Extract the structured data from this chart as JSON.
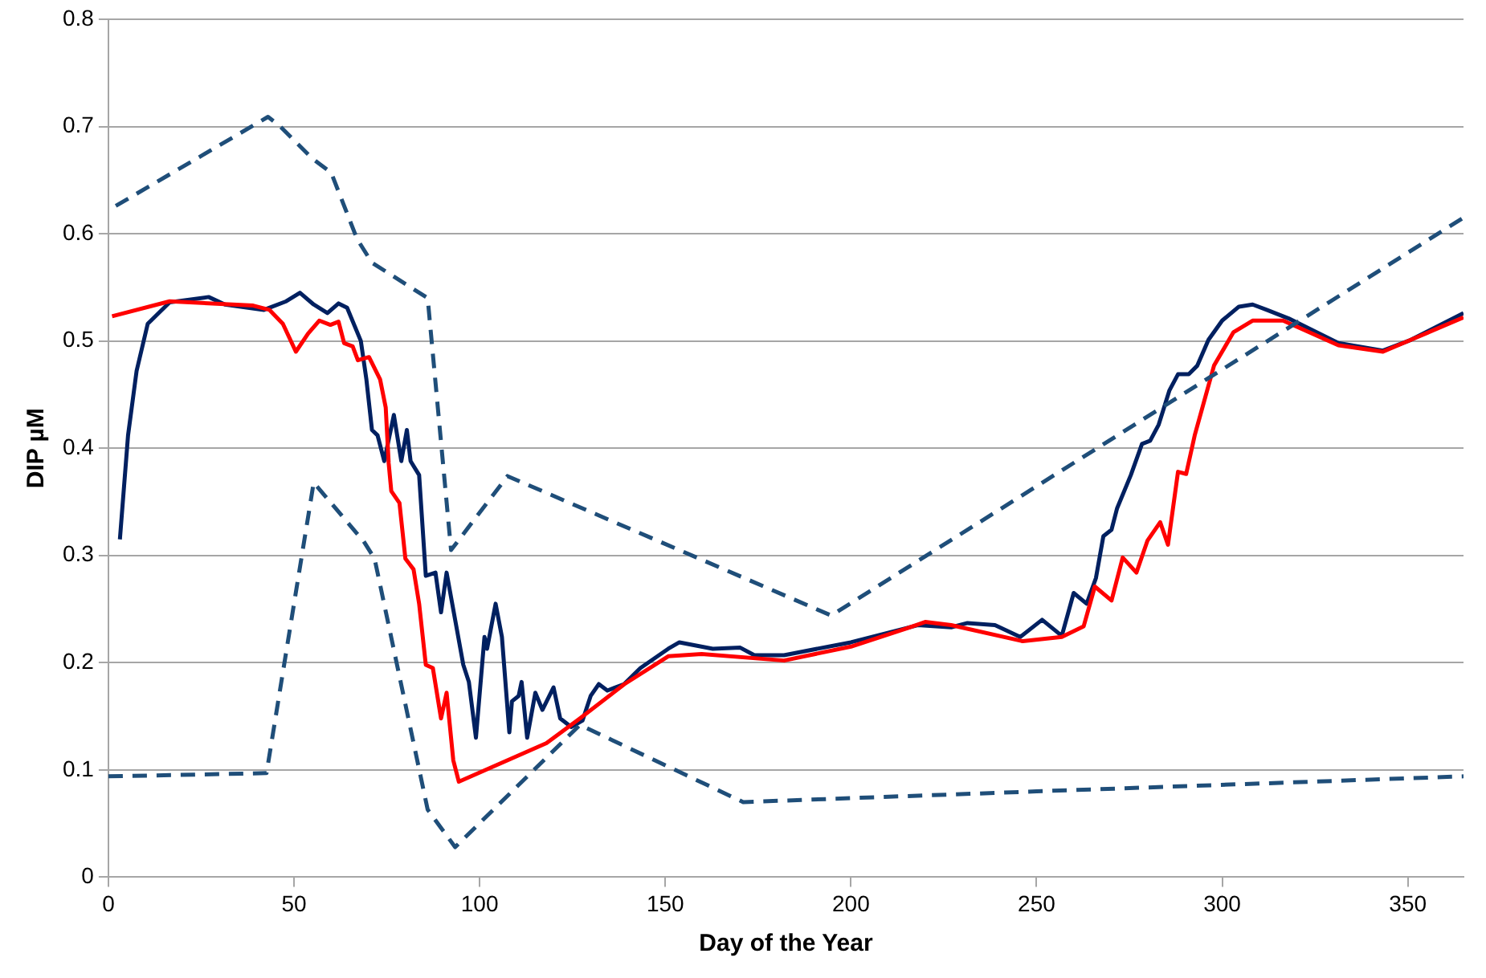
{
  "chart_data": {
    "type": "line",
    "xlabel": "Day of the Year",
    "ylabel": "DIP µM",
    "xlim": [
      0,
      365
    ],
    "ylim": [
      0,
      0.8
    ],
    "xticks": [
      0,
      50,
      100,
      150,
      200,
      250,
      300,
      350
    ],
    "yticks": [
      0,
      0.1,
      0.2,
      0.3,
      0.4,
      0.5,
      0.6,
      0.7,
      0.8
    ],
    "grid": "y",
    "legend": false,
    "marker": "none",
    "series": [
      {
        "color": "#1f4e79",
        "line_style": "dashed",
        "x": [
          2,
          43,
          46,
          55,
          60,
          67,
          71,
          86,
          92.3,
          107.5,
          194.7,
          365
        ],
        "values": [
          0.626,
          0.709,
          0.701,
          0.67,
          0.657,
          0.595,
          0.573,
          0.54,
          0.305,
          0.374,
          0.244,
          0.615
        ]
      },
      {
        "color": "#1f4e79",
        "line_style": "dashed",
        "x": [
          0,
          42.6,
          55.3,
          68.8,
          71.7,
          86,
          93.4,
          127,
          171,
          250,
          365
        ],
        "values": [
          0.094,
          0.097,
          0.368,
          0.313,
          0.297,
          0.063,
          0.028,
          0.142,
          0.07,
          0.08,
          0.094
        ]
      },
      {
        "color": "#ff0000",
        "line_style": "solid",
        "x": [
          1,
          16.5,
          39,
          43.4,
          47,
          50.5,
          53.8,
          56.8,
          59.8,
          62,
          63.5,
          65.8,
          67.2,
          70.2,
          73.2,
          74.7,
          75.5,
          76.2,
          78.4,
          80,
          82.2,
          83.7,
          85.5,
          87.4,
          89.6,
          91.1,
          92.9,
          94.4,
          118,
          127,
          139,
          150.8,
          159.8,
          182,
          200,
          215,
          220,
          227,
          246.3,
          256.8,
          262.7,
          265.7,
          270.2,
          273.2,
          276.9,
          279.9,
          283.3,
          285.4,
          288.1,
          290.3,
          292.6,
          297.8,
          303,
          308.2,
          316.4,
          331.3,
          343.3,
          350.8,
          365
        ],
        "values": [
          0.523,
          0.537,
          0.533,
          0.529,
          0.516,
          0.49,
          0.507,
          0.519,
          0.515,
          0.518,
          0.498,
          0.495,
          0.482,
          0.485,
          0.464,
          0.438,
          0.386,
          0.36,
          0.349,
          0.297,
          0.287,
          0.255,
          0.198,
          0.195,
          0.148,
          0.172,
          0.109,
          0.089,
          0.125,
          0.148,
          0.18,
          0.206,
          0.208,
          0.202,
          0.215,
          0.232,
          0.238,
          0.235,
          0.22,
          0.224,
          0.234,
          0.271,
          0.258,
          0.298,
          0.284,
          0.314,
          0.331,
          0.31,
          0.378,
          0.376,
          0.412,
          0.477,
          0.508,
          0.519,
          0.519,
          0.496,
          0.49,
          0.501,
          0.522
        ]
      },
      {
        "color": "#002060",
        "line_style": "solid",
        "x": [
          3.1,
          5.3,
          7.6,
          10.6,
          16.5,
          27,
          31.4,
          41.9,
          47.9,
          51.6,
          55.3,
          59,
          62,
          64.3,
          68,
          69.5,
          71,
          72.5,
          74.3,
          76.9,
          78.9,
          80.4,
          81.4,
          83.7,
          85.5,
          88.1,
          89.6,
          91.1,
          93.4,
          95.6,
          97.1,
          99,
          101.3,
          102,
          104.3,
          106,
          108,
          108.7,
          110.5,
          111.3,
          112.8,
          115,
          116.9,
          119.9,
          121.7,
          124.7,
          127.7,
          129.9,
          132.1,
          134.4,
          138.9,
          143.3,
          150.8,
          153.8,
          162.8,
          170.2,
          174,
          182,
          200,
          218,
          227,
          231.4,
          238.8,
          245.6,
          251.5,
          256.8,
          260,
          263.5,
          266,
          268,
          270.2,
          271.7,
          275.4,
          278.4,
          280.6,
          282.9,
          285.8,
          288.1,
          291,
          293.3,
          296.3,
          300,
          304.5,
          308.2,
          312,
          317.9,
          331.3,
          343.3,
          350.8,
          365
        ],
        "values": [
          0.315,
          0.412,
          0.472,
          0.516,
          0.536,
          0.541,
          0.534,
          0.529,
          0.537,
          0.545,
          0.534,
          0.526,
          0.535,
          0.531,
          0.5,
          0.464,
          0.417,
          0.412,
          0.388,
          0.431,
          0.388,
          0.417,
          0.388,
          0.375,
          0.281,
          0.284,
          0.247,
          0.284,
          0.24,
          0.198,
          0.182,
          0.13,
          0.224,
          0.213,
          0.255,
          0.224,
          0.135,
          0.164,
          0.169,
          0.182,
          0.13,
          0.172,
          0.156,
          0.177,
          0.148,
          0.14,
          0.146,
          0.169,
          0.18,
          0.174,
          0.18,
          0.195,
          0.213,
          0.219,
          0.213,
          0.214,
          0.207,
          0.207,
          0.219,
          0.235,
          0.233,
          0.237,
          0.235,
          0.224,
          0.24,
          0.225,
          0.265,
          0.255,
          0.279,
          0.318,
          0.324,
          0.344,
          0.375,
          0.404,
          0.407,
          0.422,
          0.454,
          0.469,
          0.469,
          0.477,
          0.501,
          0.519,
          0.532,
          0.534,
          0.529,
          0.521,
          0.498,
          0.491,
          0.501,
          0.526
        ]
      }
    ]
  }
}
